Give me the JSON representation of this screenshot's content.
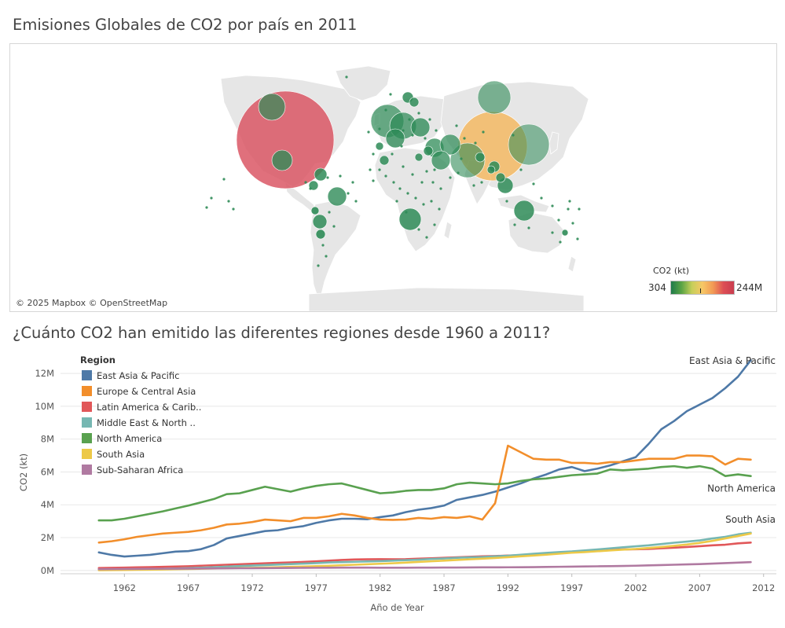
{
  "map": {
    "title": "Emisiones Globales de CO2 por país en 2011",
    "credit": "© 2025 Mapbox © OpenStreetMap",
    "legend": {
      "title": "CO2 (kt)",
      "min_label": "304",
      "max_label": "244M"
    },
    "colors": {
      "low": "#2e8b57",
      "mid": "#f7b24c",
      "high": "#d9505f",
      "land": "#e6e6e6"
    }
  },
  "chart_data": [
    {
      "type": "map",
      "title": "Emisiones Globales de CO2 por país en 2011",
      "size_legend": "CO2 (kt)",
      "color_range": [
        "304",
        "244M"
      ],
      "bubbles": [
        {
          "name": "Estados Unidos",
          "lon": -98,
          "lat": 40,
          "level": "high"
        },
        {
          "name": "China",
          "lon": 104,
          "lat": 35,
          "level": "mid"
        },
        {
          "name": "Rusia",
          "lon": 95,
          "lat": 62,
          "level": "low"
        },
        {
          "name": "India",
          "lon": 79,
          "lat": 22,
          "level": "low"
        },
        {
          "name": "Japón",
          "lon": 138,
          "lat": 37,
          "level": "low"
        },
        {
          "name": "Canadá",
          "lon": -105,
          "lat": 58,
          "level": "low"
        },
        {
          "name": "México",
          "lon": -102,
          "lat": 23,
          "level": "low"
        },
        {
          "name": "Brasil",
          "lon": -52,
          "lat": -12,
          "level": "low"
        },
        {
          "name": "Australia",
          "lon": 134,
          "lat": -26,
          "level": "low"
        },
        {
          "name": "Sudáfrica",
          "lon": 24,
          "lat": -30,
          "level": "low"
        },
        {
          "name": "Alemania",
          "lon": 10,
          "lat": 51,
          "level": "low"
        },
        {
          "name": "Reino Unido",
          "lon": -2,
          "lat": 54,
          "level": "low"
        },
        {
          "name": "Irán",
          "lon": 53,
          "lat": 32,
          "level": "low"
        },
        {
          "name": "Arabia Saudita",
          "lon": 45,
          "lat": 24,
          "level": "low"
        },
        {
          "name": "Indonesia",
          "lon": 115,
          "lat": -3,
          "level": "low"
        },
        {
          "name": "Corea del Sur",
          "lon": 128,
          "lat": 36,
          "level": "low"
        }
      ]
    },
    {
      "type": "line",
      "title": "¿Cuánto CO2 han emitido las diferentes regiones desde 1960 a 2011?",
      "xlabel": "Año de Year",
      "ylabel": "CO2 (kt)",
      "xlim": [
        1957,
        2013
      ],
      "ylim": [
        -200000,
        13200000
      ],
      "xticks": [
        1962,
        1967,
        1972,
        1977,
        1982,
        1987,
        1992,
        1997,
        2002,
        2007,
        2012
      ],
      "yticks": [
        {
          "value": 0,
          "label": "0M"
        },
        {
          "value": 2000000,
          "label": "2M"
        },
        {
          "value": 4000000,
          "label": "4M"
        },
        {
          "value": 6000000,
          "label": "6M"
        },
        {
          "value": 8000000,
          "label": "8M"
        },
        {
          "value": 10000000,
          "label": "10M"
        },
        {
          "value": 12000000,
          "label": "12M"
        }
      ],
      "legend_title": "Region",
      "legend_position": "top-left",
      "grid": "horizontal",
      "x_start": 1960,
      "series": [
        {
          "name": "East Asia & Pacific",
          "legend_label": "East Asia & Pacific",
          "end_label": "East Asia & Pacific",
          "color": "#4e79a7",
          "values": [
            1100000,
            950000,
            850000,
            900000,
            950000,
            1050000,
            1150000,
            1180000,
            1300000,
            1550000,
            1950000,
            2100000,
            2250000,
            2400000,
            2450000,
            2600000,
            2700000,
            2900000,
            3050000,
            3150000,
            3150000,
            3120000,
            3250000,
            3350000,
            3550000,
            3700000,
            3800000,
            3950000,
            4300000,
            4450000,
            4600000,
            4800000,
            5050000,
            5300000,
            5600000,
            5850000,
            6150000,
            6300000,
            6050000,
            6200000,
            6400000,
            6650000,
            6900000,
            7700000,
            8600000,
            9100000,
            9700000,
            10100000,
            10500000,
            11100000,
            11800000,
            12800000
          ]
        },
        {
          "name": "Europe & Central Asia",
          "legend_label": "Europe & Central Asia",
          "end_label": "",
          "color": "#f28e2b",
          "values": [
            1700000,
            1780000,
            1900000,
            2050000,
            2150000,
            2250000,
            2300000,
            2350000,
            2450000,
            2600000,
            2800000,
            2850000,
            2950000,
            3100000,
            3050000,
            3000000,
            3200000,
            3200000,
            3300000,
            3450000,
            3350000,
            3200000,
            3100000,
            3080000,
            3100000,
            3200000,
            3150000,
            3250000,
            3200000,
            3300000,
            3100000,
            4100000,
            7600000,
            7200000,
            6800000,
            6750000,
            6750000,
            6550000,
            6550000,
            6500000,
            6600000,
            6600000,
            6700000,
            6800000,
            6800000,
            6800000,
            7000000,
            7000000,
            6950000,
            6450000,
            6800000,
            6750000
          ]
        },
        {
          "name": "Latin America & Caribbean",
          "legend_label": "Latin America & Carib..",
          "end_label": "",
          "color": "#e15759",
          "values": [
            150000,
            160000,
            175000,
            190000,
            205000,
            220000,
            240000,
            260000,
            290000,
            320000,
            350000,
            380000,
            410000,
            440000,
            470000,
            490000,
            520000,
            560000,
            600000,
            640000,
            670000,
            680000,
            690000,
            680000,
            690000,
            720000,
            740000,
            770000,
            800000,
            830000,
            860000,
            880000,
            910000,
            930000,
            970000,
            1010000,
            1060000,
            1110000,
            1170000,
            1220000,
            1260000,
            1280000,
            1290000,
            1310000,
            1350000,
            1390000,
            1430000,
            1480000,
            1530000,
            1570000,
            1650000,
            1700000
          ]
        },
        {
          "name": "Middle East & North Africa",
          "legend_label": "Middle East & North ..",
          "end_label": "",
          "color": "#76b7b2",
          "values": [
            30000,
            40000,
            55000,
            70000,
            85000,
            100000,
            120000,
            145000,
            170000,
            200000,
            235000,
            270000,
            300000,
            330000,
            360000,
            390000,
            420000,
            450000,
            490000,
            510000,
            530000,
            550000,
            570000,
            600000,
            630000,
            660000,
            700000,
            730000,
            770000,
            800000,
            820000,
            860000,
            900000,
            960000,
            1020000,
            1070000,
            1120000,
            1160000,
            1220000,
            1280000,
            1350000,
            1410000,
            1470000,
            1530000,
            1610000,
            1690000,
            1760000,
            1830000,
            1950000,
            2050000,
            2200000,
            2300000
          ]
        },
        {
          "name": "North America",
          "legend_label": "North America",
          "end_label": "North America",
          "color": "#59a14f",
          "values": [
            3050000,
            3050000,
            3150000,
            3300000,
            3450000,
            3600000,
            3780000,
            3950000,
            4150000,
            4350000,
            4650000,
            4700000,
            4900000,
            5100000,
            4950000,
            4800000,
            5000000,
            5150000,
            5250000,
            5300000,
            5100000,
            4900000,
            4700000,
            4750000,
            4850000,
            4900000,
            4900000,
            5000000,
            5250000,
            5350000,
            5300000,
            5250000,
            5300000,
            5450000,
            5550000,
            5600000,
            5700000,
            5800000,
            5850000,
            5900000,
            6150000,
            6100000,
            6150000,
            6200000,
            6300000,
            6350000,
            6250000,
            6350000,
            6200000,
            5750000,
            5850000,
            5750000
          ]
        },
        {
          "name": "South Asia",
          "legend_label": "South Asia",
          "end_label": "South Asia",
          "color": "#edc948",
          "values": [
            20000,
            25000,
            30000,
            40000,
            50000,
            60000,
            75000,
            90000,
            105000,
            120000,
            135000,
            150000,
            165000,
            180000,
            200000,
            220000,
            240000,
            265000,
            290000,
            320000,
            350000,
            380000,
            410000,
            440000,
            480000,
            520000,
            560000,
            600000,
            640000,
            680000,
            720000,
            760000,
            810000,
            860000,
            910000,
            960000,
            1020000,
            1080000,
            1120000,
            1170000,
            1220000,
            1270000,
            1310000,
            1370000,
            1430000,
            1500000,
            1580000,
            1680000,
            1800000,
            1950000,
            2100000,
            2250000
          ]
        },
        {
          "name": "Sub-Saharan Africa",
          "legend_label": "Sub-Saharan Africa",
          "end_label": "",
          "color": "#b07aa1",
          "values": [
            80000,
            85000,
            90000,
            95000,
            100000,
            105000,
            110000,
            115000,
            120000,
            125000,
            130000,
            135000,
            140000,
            145000,
            150000,
            155000,
            160000,
            165000,
            170000,
            175000,
            175000,
            172000,
            170000,
            168000,
            170000,
            172000,
            175000,
            178000,
            182000,
            186000,
            190000,
            192000,
            195000,
            200000,
            205000,
            215000,
            225000,
            235000,
            245000,
            255000,
            265000,
            275000,
            290000,
            310000,
            330000,
            350000,
            370000,
            390000,
            420000,
            450000,
            480000,
            510000
          ]
        }
      ]
    }
  ]
}
